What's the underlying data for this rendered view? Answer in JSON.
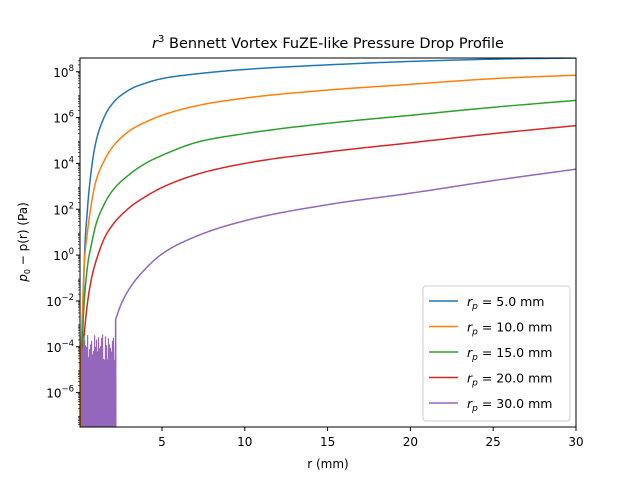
{
  "chart_data": {
    "type": "line",
    "title_parts": {
      "pre": "r",
      "sup": "3",
      "post": " Bennett Vortex FuZE-like Pressure Drop Profile"
    },
    "title": "r^3 Bennett Vortex FuZE-like Pressure Drop Profile",
    "xlabel": "r (mm)",
    "ylabel_parts": {
      "p0_base": "p",
      "p0_sub": "0",
      "rest": " − p(r) (Pa)"
    },
    "ylabel": "p_0 − p(r) (Pa)",
    "xlim": [
      0.05,
      30
    ],
    "ylim_log10": [
      -7.5,
      8.6
    ],
    "yscale": "log",
    "grid": false,
    "legend_position": "lower-right",
    "x_ticks": [
      {
        "value": 5,
        "label": "5"
      },
      {
        "value": 10,
        "label": "10"
      },
      {
        "value": 15,
        "label": "15"
      },
      {
        "value": 20,
        "label": "20"
      },
      {
        "value": 25,
        "label": "25"
      },
      {
        "value": 30,
        "label": "30"
      }
    ],
    "y_ticks": [
      {
        "log10": 8,
        "base": "10",
        "exp": "8"
      },
      {
        "log10": 6,
        "base": "10",
        "exp": "6"
      },
      {
        "log10": 4,
        "base": "10",
        "exp": "4"
      },
      {
        "log10": 2,
        "base": "10",
        "exp": "2"
      },
      {
        "log10": 0,
        "base": "10",
        "exp": "0"
      },
      {
        "log10": -2,
        "base": "10",
        "exp": "−2"
      },
      {
        "log10": -4,
        "base": "10",
        "exp": "−4"
      },
      {
        "log10": -6,
        "base": "10",
        "exp": "−6"
      }
    ],
    "series": [
      {
        "name": "r_p = 5.0 mm",
        "legend_sym": "r",
        "legend_sub": "p",
        "legend_rest": " = 5.0 mm",
        "rp_mm": 5.0,
        "color": "#1f77b4",
        "x": [
          0.2,
          0.3,
          0.5,
          0.75,
          1,
          1.5,
          2,
          3,
          4,
          5,
          7,
          10,
          15,
          20,
          25,
          30
        ],
        "log10_y": [
          -4.0,
          -0.5,
          2.0,
          3.8,
          4.9,
          6.0,
          6.6,
          7.2,
          7.5,
          7.7,
          7.9,
          8.1,
          8.3,
          8.45,
          8.55,
          8.6
        ]
      },
      {
        "name": "r_p = 10.0 mm",
        "legend_sym": "r",
        "legend_sub": "p",
        "legend_rest": " = 10.0 mm",
        "rp_mm": 10.0,
        "color": "#ff7f0e",
        "x": [
          0.12,
          0.2,
          0.3,
          0.5,
          0.75,
          1,
          1.5,
          2,
          3,
          4,
          5,
          7,
          10,
          15,
          20,
          25,
          30
        ],
        "log10_y": [
          -4.0,
          -2.4,
          -0.5,
          1.0,
          2.3,
          3.2,
          4.1,
          4.7,
          5.4,
          5.8,
          6.1,
          6.5,
          6.85,
          7.2,
          7.45,
          7.7,
          7.85
        ]
      },
      {
        "name": "r_p = 15.0 mm",
        "legend_sym": "r",
        "legend_sub": "p",
        "legend_rest": " = 15.0 mm",
        "rp_mm": 15.0,
        "color": "#2ca02c",
        "x": [
          0.15,
          0.2,
          0.3,
          0.5,
          0.75,
          1,
          1.5,
          2,
          3,
          4,
          5,
          7,
          10,
          15,
          20,
          25,
          30
        ],
        "log10_y": [
          -4.0,
          -3.4,
          -2.1,
          -0.5,
          0.5,
          1.3,
          2.2,
          2.8,
          3.5,
          4.0,
          4.35,
          4.9,
          5.3,
          5.75,
          6.1,
          6.45,
          6.75
        ]
      },
      {
        "name": "r_p = 20.0 mm",
        "legend_sym": "r",
        "legend_sub": "p",
        "legend_rest": " = 20.0 mm",
        "rp_mm": 20.0,
        "color": "#d62728",
        "x": [
          0.25,
          0.3,
          0.5,
          0.75,
          1,
          1.5,
          2,
          3,
          4,
          5,
          7,
          10,
          15,
          20,
          25,
          30
        ],
        "log10_y": [
          -4.0,
          -3.5,
          -2.1,
          -1.0,
          -0.3,
          0.7,
          1.3,
          2.05,
          2.55,
          2.95,
          3.5,
          4.0,
          4.5,
          4.9,
          5.3,
          5.65
        ]
      },
      {
        "name": "r_p = 30.0 mm",
        "legend_sym": "r",
        "legend_sub": "p",
        "legend_rest": " = 30.0 mm",
        "rp_mm": 30.0,
        "color": "#9467bd",
        "x": [
          2.2,
          2.5,
          3,
          4,
          5,
          7,
          10,
          15,
          20,
          25,
          30
        ],
        "log10_y": [
          -2.8,
          -2.2,
          -1.5,
          -0.6,
          0.05,
          0.8,
          1.5,
          2.2,
          2.7,
          3.25,
          3.75
        ]
      }
    ],
    "noise_note": "numerical noise near r < 2.2 mm for r_p = 30.0 mm spans roughly 1e-7 to 1e-3"
  }
}
